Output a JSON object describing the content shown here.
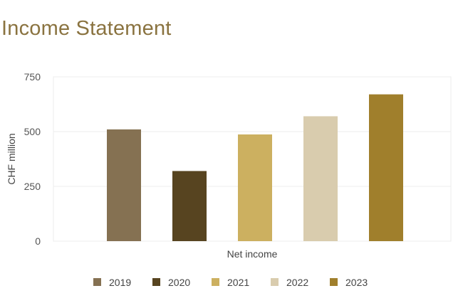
{
  "page": {
    "title": "Income Statement"
  },
  "chart_data": {
    "type": "bar",
    "categories": [
      "Net income"
    ],
    "series": [
      {
        "name": "2019",
        "values": [
          510
        ],
        "color": "#857152"
      },
      {
        "name": "2020",
        "values": [
          320
        ],
        "color": "#574420"
      },
      {
        "name": "2021",
        "values": [
          487
        ],
        "color": "#ccb060"
      },
      {
        "name": "2022",
        "values": [
          570
        ],
        "color": "#d9ccae"
      },
      {
        "name": "2023",
        "values": [
          670
        ],
        "color": "#a07f2c"
      }
    ],
    "title": "",
    "xlabel": "Net income",
    "ylabel": "CHF million",
    "ylim": [
      0,
      750
    ],
    "yticks": [
      "0",
      "250",
      "500",
      "750"
    ],
    "grid": true,
    "legend_position": "bottom"
  }
}
